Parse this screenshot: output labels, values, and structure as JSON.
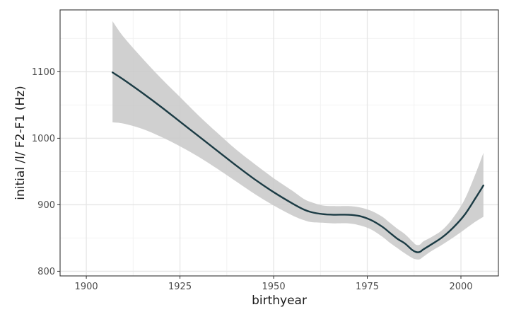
{
  "chart_data": {
    "type": "line",
    "title": "",
    "xlabel": "birthyear",
    "ylabel": "initial /l/ F2-F1 (Hz)",
    "xlim": [
      1893,
      2010
    ],
    "ylim": [
      793,
      1193
    ],
    "xticks": [
      1900,
      1925,
      1950,
      1975,
      2000
    ],
    "yticks": [
      800,
      900,
      1000,
      1100
    ],
    "x_minor": [
      1912.5,
      1937.5,
      1962.5,
      1987.5
    ],
    "y_minor": [
      850,
      950,
      1050,
      1150
    ],
    "grid": true,
    "legend": "none",
    "colors": {
      "line": "#1b3b44",
      "ribbon": "#c8c8c8",
      "grid_major": "#e6e6e6",
      "grid_minor": "#f2f2f2",
      "panel_border": "#333333"
    },
    "series": [
      {
        "x": [
          1907,
          1910,
          1915,
          1920,
          1925,
          1930,
          1935,
          1940,
          1945,
          1950,
          1955,
          1958,
          1960,
          1963,
          1966,
          1970,
          1973,
          1976,
          1979,
          1981,
          1983,
          1985,
          1987,
          1988,
          1989,
          1990,
          1992,
          1995,
          1998,
          2001,
          2004,
          2006
        ],
        "y": [
          1099,
          1088,
          1068,
          1047,
          1025,
          1003,
          981,
          959,
          938,
          919,
          902,
          893,
          889,
          886,
          885,
          885,
          883,
          877,
          867,
          858,
          849,
          842,
          832,
          829,
          829,
          833,
          840,
          851,
          866,
          885,
          911,
          929
        ],
        "lower": [
          1024,
          1022,
          1014,
          1002,
          988,
          972,
          954,
          935,
          916,
          899,
          884,
          877,
          874,
          873,
          872,
          872,
          869,
          863,
          852,
          843,
          835,
          827,
          820,
          818,
          818,
          822,
          830,
          840,
          851,
          863,
          875,
          882
        ],
        "upper": [
          1176,
          1152,
          1120,
          1090,
          1062,
          1034,
          1008,
          983,
          961,
          940,
          921,
          909,
          904,
          899,
          898,
          898,
          896,
          891,
          882,
          873,
          864,
          856,
          845,
          840,
          840,
          845,
          851,
          862,
          881,
          908,
          948,
          978
        ]
      }
    ]
  }
}
